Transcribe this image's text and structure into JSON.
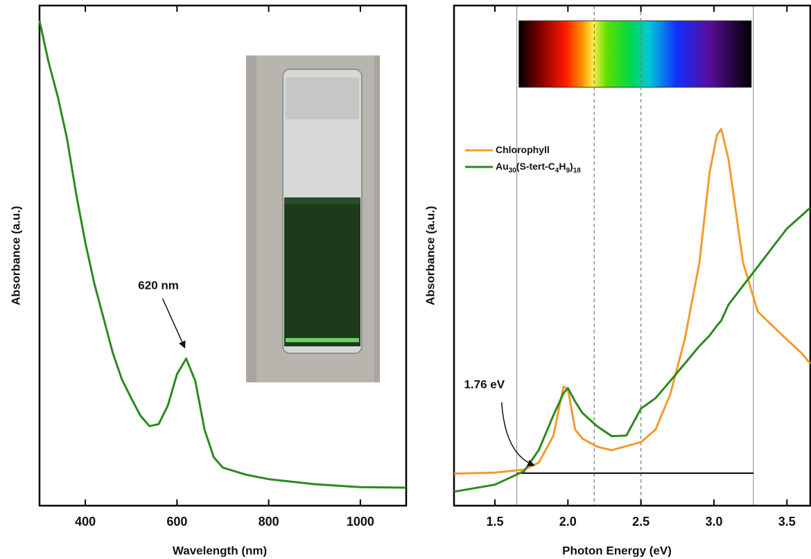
{
  "chart_data": [
    {
      "type": "line",
      "xlabel": "Wavelength (nm)",
      "ylabel": "Absorbance (a.u.)",
      "x": [
        300,
        320,
        340,
        360,
        380,
        400,
        420,
        440,
        460,
        480,
        500,
        520,
        540,
        560,
        580,
        600,
        620,
        640,
        660,
        680,
        700,
        750,
        800,
        900,
        1000,
        1100
      ],
      "values": [
        0.97,
        0.886,
        0.817,
        0.734,
        0.623,
        0.526,
        0.443,
        0.374,
        0.305,
        0.252,
        0.215,
        0.18,
        0.159,
        0.163,
        0.2,
        0.263,
        0.294,
        0.249,
        0.152,
        0.097,
        0.076,
        0.062,
        0.053,
        0.043,
        0.037,
        0.036
      ],
      "color": "#2a8a1e",
      "xlim": [
        300,
        1100
      ],
      "ylim": [
        0,
        1
      ],
      "xticks": [
        400,
        600,
        800,
        1000
      ],
      "annotations": [
        {
          "text": "620 nm",
          "x": 620,
          "y": 0.31
        }
      ]
    },
    {
      "type": "line",
      "xlabel": "Photon Energy (eV)",
      "ylabel": "Absorbance (a.u.)",
      "x": [
        1.22,
        1.5,
        1.7,
        1.8,
        1.9,
        1.97,
        2.0,
        2.05,
        2.1,
        2.2,
        2.3,
        2.4,
        2.5,
        2.6,
        2.7,
        2.8,
        2.9,
        2.97,
        3.02,
        3.05,
        3.1,
        3.2,
        3.3,
        3.4,
        3.5,
        3.6,
        3.66
      ],
      "series": [
        {
          "name": "Chlorophyll",
          "color": "#f39a2e",
          "values": [
            0.064,
            0.066,
            0.072,
            0.086,
            0.139,
            0.238,
            0.233,
            0.152,
            0.134,
            0.118,
            0.111,
            0.119,
            0.127,
            0.152,
            0.222,
            0.332,
            0.485,
            0.665,
            0.741,
            0.753,
            0.693,
            0.485,
            0.388,
            0.36,
            0.332,
            0.305,
            0.284
          ]
        },
        {
          "name": "Au30(S-tert-C4H9)18",
          "color": "#2a8a1e",
          "values": [
            0.028,
            0.042,
            0.069,
            0.111,
            0.18,
            0.225,
            0.235,
            0.208,
            0.185,
            0.159,
            0.139,
            0.14,
            0.194,
            0.215,
            0.249,
            0.284,
            0.319,
            0.34,
            0.36,
            0.37,
            0.402,
            0.44,
            0.478,
            0.516,
            0.554,
            0.58,
            0.596
          ]
        }
      ],
      "xlim": [
        1.22,
        3.66
      ],
      "ylim": [
        0,
        1
      ],
      "xticks": [
        1.5,
        {
          "value": 2,
          "label": "2.0"
        },
        2.5,
        {
          "value": 3,
          "label": "3.0"
        },
        3.5
      ],
      "vlines": [
        {
          "x": 1.65,
          "dashed": false
        },
        {
          "x": 2.18,
          "dashed": true
        },
        {
          "x": 2.5,
          "dashed": true
        },
        {
          "x": 3.27,
          "dashed": false
        }
      ],
      "hline": {
        "y": 0.065,
        "x": [
          1.65,
          3.27
        ]
      },
      "legend": "upper left",
      "annotations": [
        {
          "text": "1.76 eV",
          "x": 1.76,
          "y": 0.075
        }
      ]
    }
  ]
}
